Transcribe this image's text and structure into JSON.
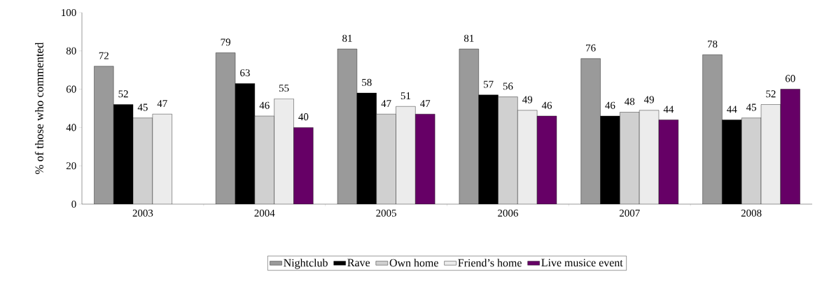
{
  "chart_data": {
    "type": "bar",
    "ylabel": "% of those who commented",
    "categories": [
      "2003",
      "2004",
      "2005",
      "2006",
      "2007",
      "2008"
    ],
    "series": [
      {
        "name": "Nightclub",
        "color": "#9a9a9a",
        "values": [
          72,
          79,
          81,
          81,
          76,
          78
        ]
      },
      {
        "name": "Rave",
        "color": "#000000",
        "values": [
          52,
          63,
          58,
          57,
          46,
          44
        ]
      },
      {
        "name": "Own home",
        "color": "#d0d0d0",
        "values": [
          45,
          46,
          47,
          56,
          48,
          45
        ]
      },
      {
        "name": "Friend’s home",
        "color": "#ececec",
        "values": [
          47,
          55,
          51,
          49,
          49,
          52
        ]
      },
      {
        "name": "Live musice event",
        "color": "#660066",
        "values": [
          null,
          40,
          47,
          46,
          44,
          60
        ]
      }
    ],
    "ylim": [
      0,
      100
    ],
    "yticks": [
      0,
      20,
      40,
      60,
      80,
      100
    ],
    "grid": false,
    "legend": "bottom",
    "data_labels": true
  }
}
